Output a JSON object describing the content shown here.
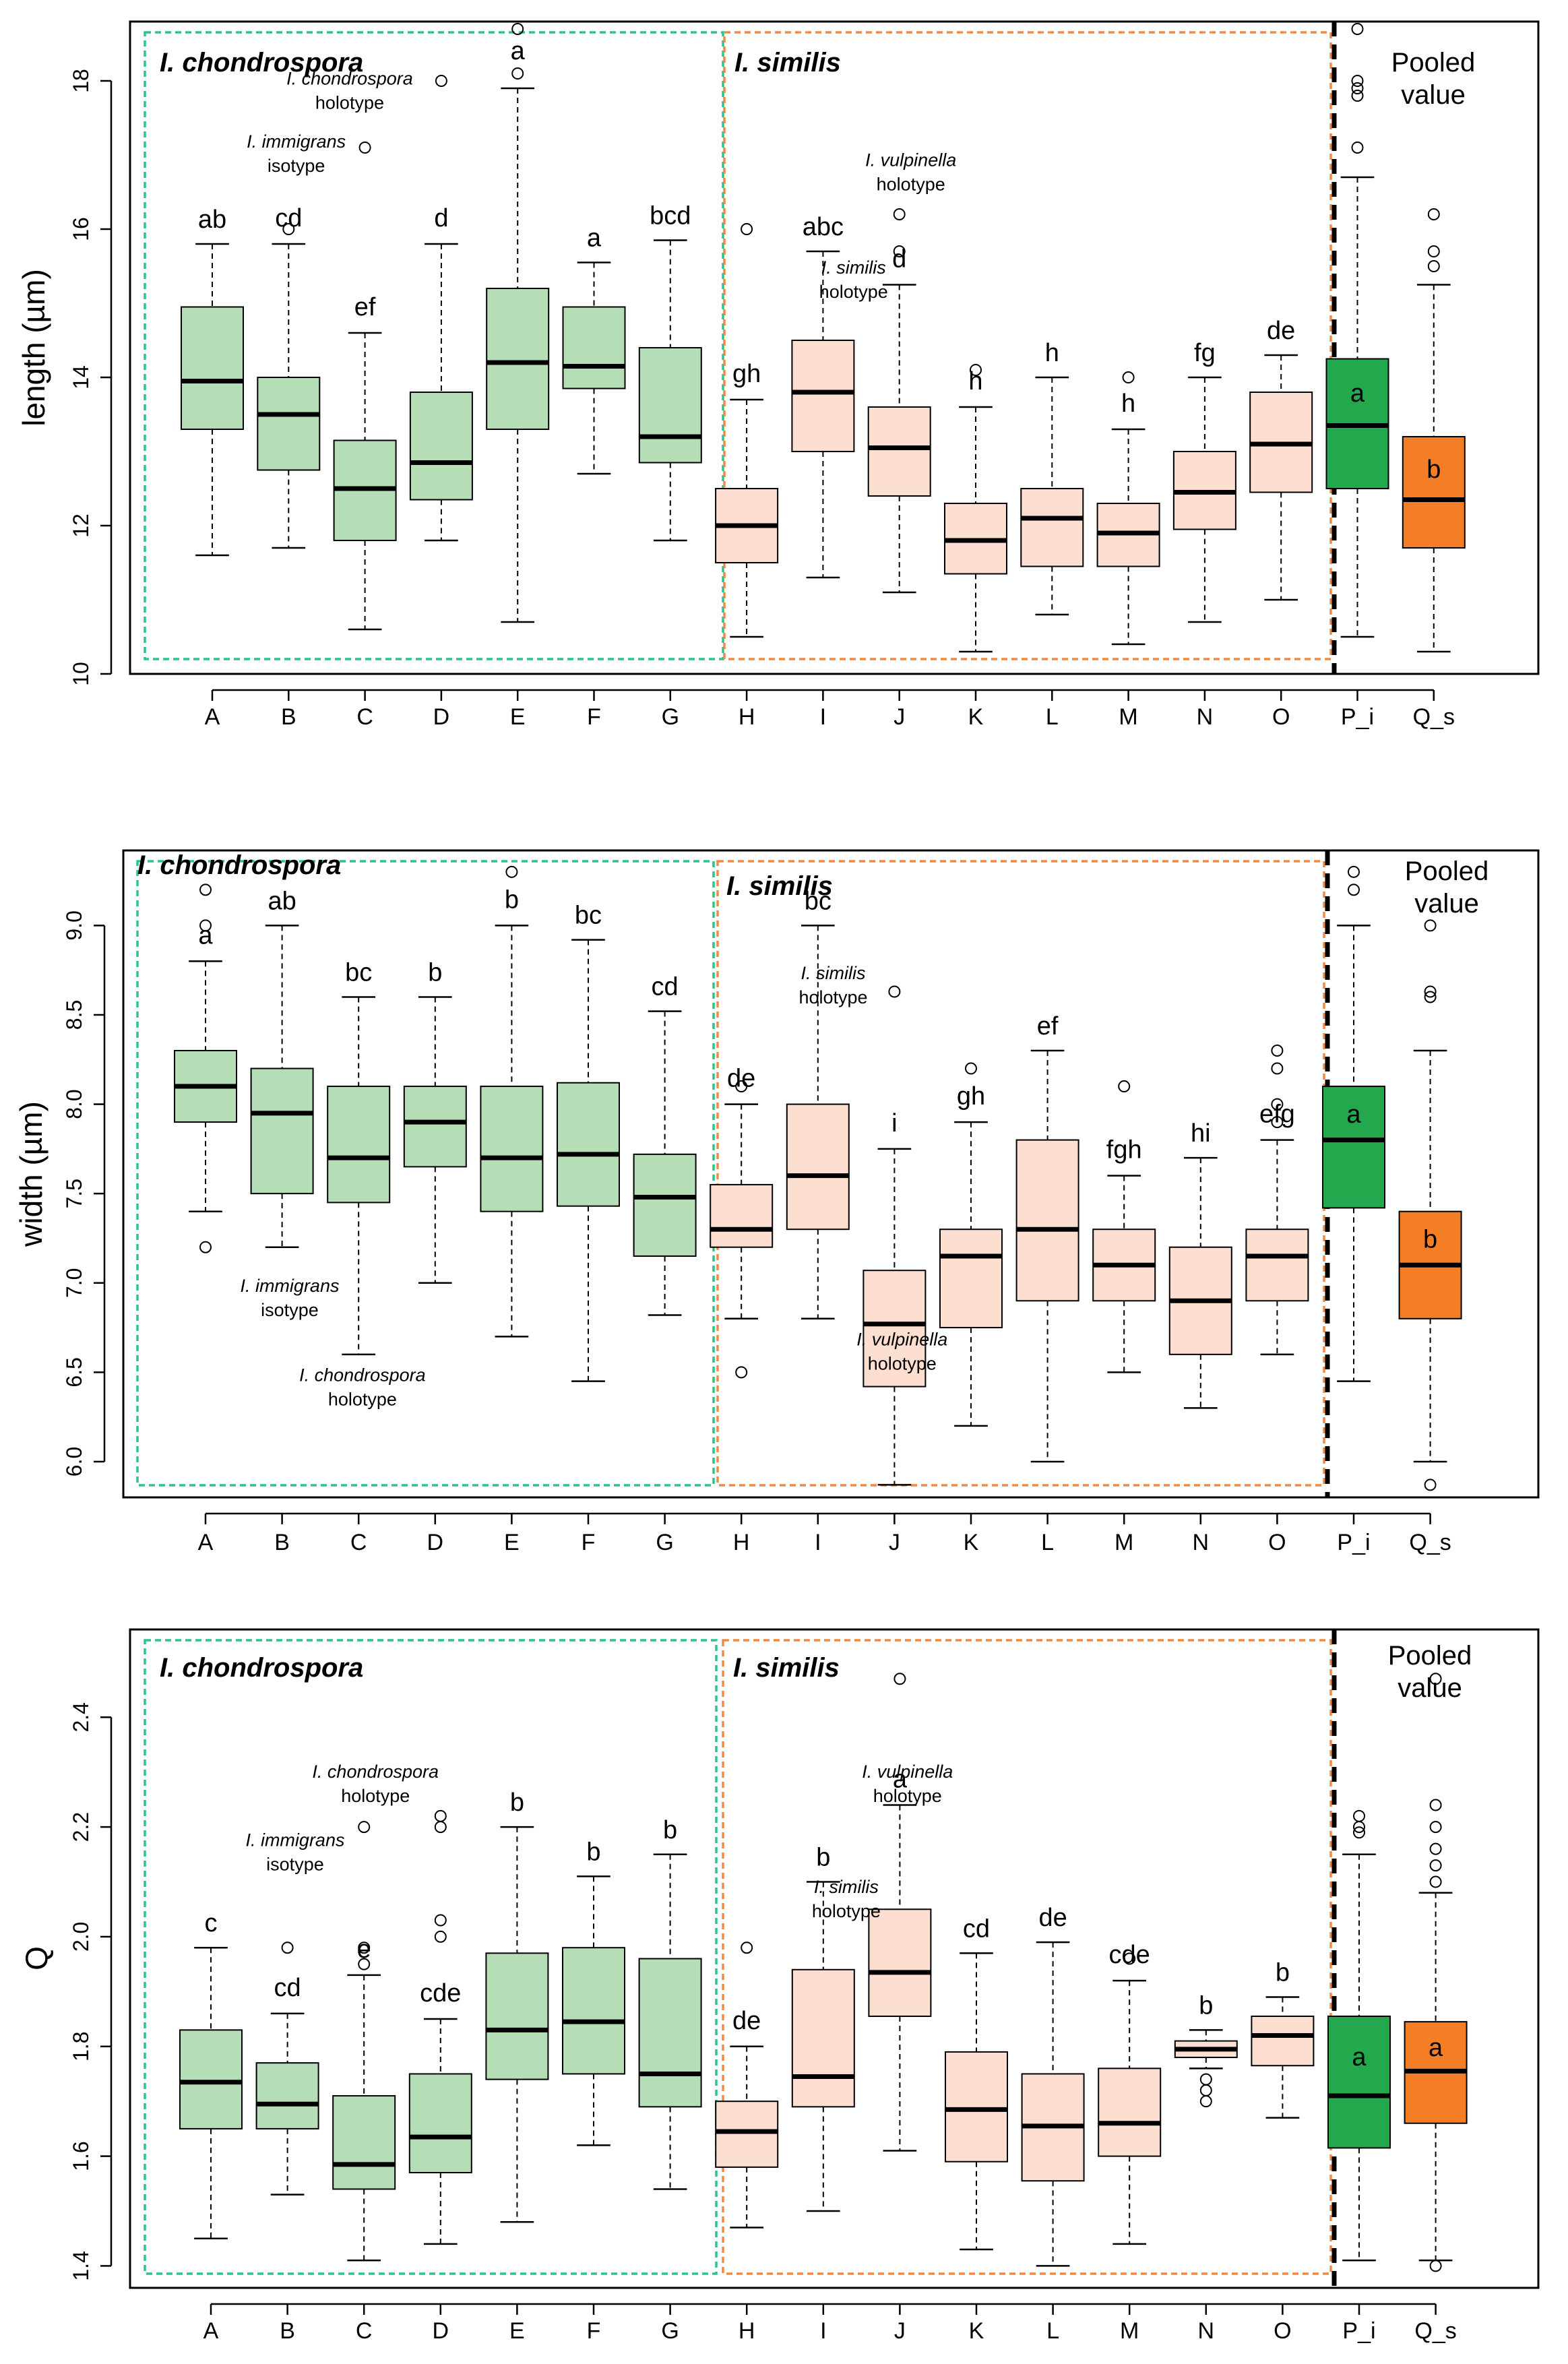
{
  "colors": {
    "chondrospora_fill": "#b6deb6",
    "similis_fill": "#fddfd2",
    "pooled_i_fill": "#23a84e",
    "pooled_s_fill": "#f47e26",
    "chondrospora_border": "#2bc489",
    "similis_border": "#ef8a45"
  },
  "chart_data": [
    {
      "type": "boxplot",
      "id": "length",
      "ylabel": "length (µm)",
      "ylim": [
        10,
        18.8
      ],
      "yticks": [
        10,
        12,
        14,
        16,
        18
      ],
      "group_labels": {
        "chondrospora": "I. chondrospora",
        "similis": "I. similis",
        "pooled": [
          "Pooled",
          "value"
        ]
      },
      "annotations": [
        {
          "lines": [
            "I. chondrospora",
            "holotype"
          ],
          "x": 1.8,
          "y": 17.95
        },
        {
          "lines": [
            "I. immigrans",
            "isotype"
          ],
          "x": 1.1,
          "y": 17.1
        },
        {
          "lines": [
            "I. vulpinella",
            "holotype"
          ],
          "x": 9.15,
          "y": 16.85
        },
        {
          "lines": [
            "I. similis",
            "holotype"
          ],
          "x": 8.4,
          "y": 15.4
        }
      ],
      "boxes": [
        {
          "cat": "A",
          "min": 11.6,
          "q1": 13.3,
          "median": 13.95,
          "q3": 14.95,
          "max": 15.8,
          "outliers": [],
          "letter": "ab",
          "group": "ch"
        },
        {
          "cat": "B",
          "min": 11.7,
          "q1": 12.75,
          "median": 13.5,
          "q3": 14.0,
          "max": 15.8,
          "outliers": [
            16.0
          ],
          "letter": "cd",
          "group": "ch"
        },
        {
          "cat": "C",
          "min": 10.6,
          "q1": 11.8,
          "median": 12.5,
          "q3": 13.15,
          "max": 14.6,
          "outliers": [
            17.1
          ],
          "letter": "ef",
          "group": "ch"
        },
        {
          "cat": "D",
          "min": 11.8,
          "q1": 12.35,
          "median": 12.85,
          "q3": 13.8,
          "max": 15.8,
          "outliers": [
            18.0
          ],
          "letter": "d",
          "group": "ch"
        },
        {
          "cat": "E",
          "min": 10.7,
          "q1": 13.3,
          "median": 14.2,
          "q3": 15.2,
          "max": 17.9,
          "outliers": [
            18.1,
            18.7
          ],
          "letter": "a",
          "group": "ch"
        },
        {
          "cat": "F",
          "min": 12.7,
          "q1": 13.85,
          "median": 14.15,
          "q3": 14.95,
          "max": 15.55,
          "outliers": [],
          "letter": "a",
          "group": "ch"
        },
        {
          "cat": "G",
          "min": 11.8,
          "q1": 12.85,
          "median": 13.2,
          "q3": 14.4,
          "max": 15.85,
          "outliers": [],
          "letter": "bcd",
          "group": "ch"
        },
        {
          "cat": "H",
          "min": 10.5,
          "q1": 11.5,
          "median": 12.0,
          "q3": 12.5,
          "max": 13.7,
          "outliers": [
            16.0
          ],
          "letter": "gh",
          "group": "sim"
        },
        {
          "cat": "I",
          "min": 11.3,
          "q1": 13.0,
          "median": 13.8,
          "q3": 14.5,
          "max": 15.7,
          "outliers": [],
          "letter": "abc",
          "group": "sim"
        },
        {
          "cat": "J",
          "min": 11.1,
          "q1": 12.4,
          "median": 13.05,
          "q3": 13.6,
          "max": 15.25,
          "outliers": [
            15.7,
            16.2
          ],
          "letter": "d",
          "group": "sim"
        },
        {
          "cat": "K",
          "min": 10.3,
          "q1": 11.35,
          "median": 11.8,
          "q3": 12.3,
          "max": 13.6,
          "outliers": [
            14.1
          ],
          "letter": "h",
          "group": "sim"
        },
        {
          "cat": "L",
          "min": 10.8,
          "q1": 11.45,
          "median": 12.1,
          "q3": 12.5,
          "max": 14.0,
          "outliers": [],
          "letter": "h",
          "group": "sim"
        },
        {
          "cat": "M",
          "min": 10.4,
          "q1": 11.45,
          "median": 11.9,
          "q3": 12.3,
          "max": 13.3,
          "outliers": [
            14.0
          ],
          "letter": "h",
          "group": "sim"
        },
        {
          "cat": "N",
          "min": 10.7,
          "q1": 11.95,
          "median": 12.45,
          "q3": 13.0,
          "max": 14.0,
          "outliers": [],
          "letter": "fg",
          "group": "sim"
        },
        {
          "cat": "O",
          "min": 11.0,
          "q1": 12.45,
          "median": 13.1,
          "q3": 13.8,
          "max": 14.3,
          "outliers": [],
          "letter": "de",
          "group": "sim"
        },
        {
          "cat": "P_i",
          "min": 10.5,
          "q1": 12.5,
          "median": 13.35,
          "q3": 14.25,
          "max": 16.7,
          "outliers": [
            17.1,
            17.8,
            17.9,
            18.0,
            18.7
          ],
          "letter": "a",
          "group": "pi"
        },
        {
          "cat": "Q_s",
          "min": 10.3,
          "q1": 11.7,
          "median": 12.35,
          "q3": 13.2,
          "max": 15.25,
          "outliers": [
            15.5,
            15.7,
            16.2
          ],
          "letter": "b",
          "group": "qs"
        }
      ]
    },
    {
      "type": "boxplot",
      "id": "width",
      "ylabel": "width (µm)",
      "ylim": [
        5.8,
        9.42
      ],
      "yticks": [
        6.0,
        6.5,
        7.0,
        7.5,
        8.0,
        8.5,
        9.0
      ],
      "group_labels": {
        "chondrospora": "I. chondrospora",
        "similis": "I. similis",
        "pooled": [
          "Pooled",
          "value"
        ]
      },
      "annotations": [
        {
          "lines": [
            "I. similis",
            "holotype"
          ],
          "x": 8.2,
          "y": 8.7
        },
        {
          "lines": [
            "I. immigrans",
            "isotype"
          ],
          "x": 1.1,
          "y": 6.95
        },
        {
          "lines": [
            "I. vulpinella",
            "holotype"
          ],
          "x": 9.1,
          "y": 6.65
        },
        {
          "lines": [
            "I. chondrospora",
            "holotype"
          ],
          "x": 2.05,
          "y": 6.45
        }
      ],
      "boxes": [
        {
          "cat": "A",
          "min": 7.4,
          "q1": 7.9,
          "median": 8.1,
          "q3": 8.3,
          "max": 8.8,
          "outliers": [
            7.2,
            9.0,
            9.2
          ],
          "letter": "a",
          "group": "ch"
        },
        {
          "cat": "B",
          "min": 7.2,
          "q1": 7.5,
          "median": 7.95,
          "q3": 8.2,
          "max": 9.0,
          "outliers": [],
          "letter": "ab",
          "group": "ch"
        },
        {
          "cat": "C",
          "min": 6.6,
          "q1": 7.45,
          "median": 7.7,
          "q3": 8.1,
          "max": 8.6,
          "outliers": [],
          "letter": "bc",
          "group": "ch"
        },
        {
          "cat": "D",
          "min": 7.0,
          "q1": 7.65,
          "median": 7.9,
          "q3": 8.1,
          "max": 8.6,
          "outliers": [],
          "letter": "b",
          "group": "ch"
        },
        {
          "cat": "E",
          "min": 6.7,
          "q1": 7.4,
          "median": 7.7,
          "q3": 8.1,
          "max": 9.0,
          "outliers": [
            9.3
          ],
          "letter": "b",
          "group": "ch"
        },
        {
          "cat": "F",
          "min": 6.45,
          "q1": 7.43,
          "median": 7.72,
          "q3": 8.12,
          "max": 8.92,
          "outliers": [],
          "letter": "bc",
          "group": "ch"
        },
        {
          "cat": "G",
          "min": 6.82,
          "q1": 7.15,
          "median": 7.48,
          "q3": 7.72,
          "max": 8.52,
          "outliers": [],
          "letter": "cd",
          "group": "ch"
        },
        {
          "cat": "H",
          "min": 6.8,
          "q1": 7.2,
          "median": 7.3,
          "q3": 7.55,
          "max": 8.0,
          "outliers": [
            6.5,
            8.1
          ],
          "letter": "de",
          "group": "sim"
        },
        {
          "cat": "I",
          "min": 6.8,
          "q1": 7.3,
          "median": 7.6,
          "q3": 8.0,
          "max": 9.0,
          "outliers": [],
          "letter": "bc",
          "group": "sim"
        },
        {
          "cat": "J",
          "min": 5.87,
          "q1": 6.42,
          "median": 6.77,
          "q3": 7.07,
          "max": 7.75,
          "outliers": [
            8.63
          ],
          "letter": "i",
          "group": "sim"
        },
        {
          "cat": "K",
          "min": 6.2,
          "q1": 6.75,
          "median": 7.15,
          "q3": 7.3,
          "max": 7.9,
          "outliers": [
            8.2
          ],
          "letter": "gh",
          "group": "sim"
        },
        {
          "cat": "L",
          "min": 6.0,
          "q1": 6.9,
          "median": 7.3,
          "q3": 7.8,
          "max": 8.3,
          "outliers": [],
          "letter": "ef",
          "group": "sim"
        },
        {
          "cat": "M",
          "min": 6.5,
          "q1": 6.9,
          "median": 7.1,
          "q3": 7.3,
          "max": 7.6,
          "outliers": [
            8.1
          ],
          "letter": "fgh",
          "group": "sim"
        },
        {
          "cat": "N",
          "min": 6.3,
          "q1": 6.6,
          "median": 6.9,
          "q3": 7.2,
          "max": 7.7,
          "outliers": [],
          "letter": "hi",
          "group": "sim"
        },
        {
          "cat": "O",
          "min": 6.6,
          "q1": 6.9,
          "median": 7.15,
          "q3": 7.3,
          "max": 7.8,
          "outliers": [
            7.9,
            8.0,
            8.2,
            8.3
          ],
          "letter": "efg",
          "group": "sim"
        },
        {
          "cat": "P_i",
          "min": 6.45,
          "q1": 7.42,
          "median": 7.8,
          "q3": 8.1,
          "max": 9.0,
          "outliers": [
            9.2,
            9.3
          ],
          "letter": "a",
          "group": "pi"
        },
        {
          "cat": "Q_s",
          "min": 6.0,
          "q1": 6.8,
          "median": 7.1,
          "q3": 7.4,
          "max": 8.3,
          "outliers": [
            5.87,
            8.6,
            8.63,
            9.0
          ],
          "letter": "b",
          "group": "qs"
        }
      ]
    },
    {
      "type": "boxplot",
      "id": "Q",
      "ylabel": "Q",
      "ylim": [
        1.36,
        2.56
      ],
      "yticks": [
        1.4,
        1.6,
        1.8,
        2.0,
        2.2,
        2.4
      ],
      "group_labels": {
        "chondrospora": "I. chondrospora",
        "similis": "I. similis",
        "pooled": [
          "Pooled",
          "value"
        ]
      },
      "annotations": [
        {
          "lines": [
            "I. chondrospora",
            "holotype"
          ],
          "x": 2.15,
          "y": 2.29
        },
        {
          "lines": [
            "I. immigrans",
            "isotype"
          ],
          "x": 1.1,
          "y": 2.165
        },
        {
          "lines": [
            "I. vulpinella",
            "holotype"
          ],
          "x": 9.1,
          "y": 2.29
        },
        {
          "lines": [
            "I. similis",
            "holotype"
          ],
          "x": 8.3,
          "y": 2.08
        }
      ],
      "boxes": [
        {
          "cat": "A",
          "min": 1.45,
          "q1": 1.65,
          "median": 1.735,
          "q3": 1.83,
          "max": 1.98,
          "outliers": [],
          "letter": "c",
          "group": "ch"
        },
        {
          "cat": "B",
          "min": 1.53,
          "q1": 1.65,
          "median": 1.695,
          "q3": 1.77,
          "max": 1.86,
          "outliers": [
            1.98
          ],
          "letter": "cd",
          "group": "ch"
        },
        {
          "cat": "C",
          "min": 1.41,
          "q1": 1.54,
          "median": 1.585,
          "q3": 1.71,
          "max": 1.93,
          "outliers": [
            1.95,
            1.98,
            2.2
          ],
          "letter": "e",
          "group": "ch"
        },
        {
          "cat": "D",
          "min": 1.44,
          "q1": 1.57,
          "median": 1.635,
          "q3": 1.75,
          "max": 1.85,
          "outliers": [
            2.0,
            2.03,
            2.2,
            2.22
          ],
          "letter": "cde",
          "group": "ch"
        },
        {
          "cat": "E",
          "min": 1.48,
          "q1": 1.74,
          "median": 1.83,
          "q3": 1.97,
          "max": 2.2,
          "outliers": [],
          "letter": "b",
          "group": "ch"
        },
        {
          "cat": "F",
          "min": 1.62,
          "q1": 1.75,
          "median": 1.845,
          "q3": 1.98,
          "max": 2.11,
          "outliers": [],
          "letter": "b",
          "group": "ch"
        },
        {
          "cat": "G",
          "min": 1.54,
          "q1": 1.69,
          "median": 1.75,
          "q3": 1.96,
          "max": 2.15,
          "outliers": [],
          "letter": "b",
          "group": "ch"
        },
        {
          "cat": "H",
          "min": 1.47,
          "q1": 1.58,
          "median": 1.645,
          "q3": 1.7,
          "max": 1.8,
          "outliers": [
            1.98
          ],
          "letter": "de",
          "group": "sim"
        },
        {
          "cat": "I",
          "min": 1.5,
          "q1": 1.69,
          "median": 1.745,
          "q3": 1.94,
          "max": 2.1,
          "outliers": [],
          "letter": "b",
          "group": "sim"
        },
        {
          "cat": "J",
          "min": 1.61,
          "q1": 1.855,
          "median": 1.935,
          "q3": 2.05,
          "max": 2.24,
          "outliers": [
            2.47
          ],
          "letter": "a",
          "group": "sim"
        },
        {
          "cat": "K",
          "min": 1.43,
          "q1": 1.59,
          "median": 1.685,
          "q3": 1.79,
          "max": 1.97,
          "outliers": [],
          "letter": "cd",
          "group": "sim"
        },
        {
          "cat": "L",
          "min": 1.4,
          "q1": 1.555,
          "median": 1.655,
          "q3": 1.75,
          "max": 1.99,
          "outliers": [],
          "letter": "de",
          "group": "sim"
        },
        {
          "cat": "M",
          "min": 1.44,
          "q1": 1.6,
          "median": 1.66,
          "q3": 1.76,
          "max": 1.92,
          "outliers": [
            1.96
          ],
          "letter": "cde",
          "group": "sim"
        },
        {
          "cat": "N",
          "min": 1.76,
          "q1": 1.78,
          "median": 1.795,
          "q3": 1.81,
          "max": 1.83,
          "outliers": [
            1.7,
            1.72,
            1.74
          ],
          "letter": "b",
          "group": "sim"
        },
        {
          "cat": "O",
          "min": 1.67,
          "q1": 1.765,
          "median": 1.82,
          "q3": 1.855,
          "max": 1.89,
          "outliers": [],
          "letter": "b",
          "group": "sim"
        },
        {
          "cat": "P_i",
          "min": 1.41,
          "q1": 1.615,
          "median": 1.71,
          "q3": 1.855,
          "max": 2.15,
          "outliers": [
            2.19,
            2.2,
            2.22
          ],
          "letter": "a",
          "group": "pi"
        },
        {
          "cat": "Q_s",
          "min": 1.41,
          "q1": 1.66,
          "median": 1.755,
          "q3": 1.845,
          "max": 2.08,
          "outliers": [
            1.4,
            2.1,
            2.13,
            2.16,
            2.2,
            2.24,
            2.47
          ],
          "letter": "a",
          "group": "qs"
        }
      ]
    }
  ]
}
